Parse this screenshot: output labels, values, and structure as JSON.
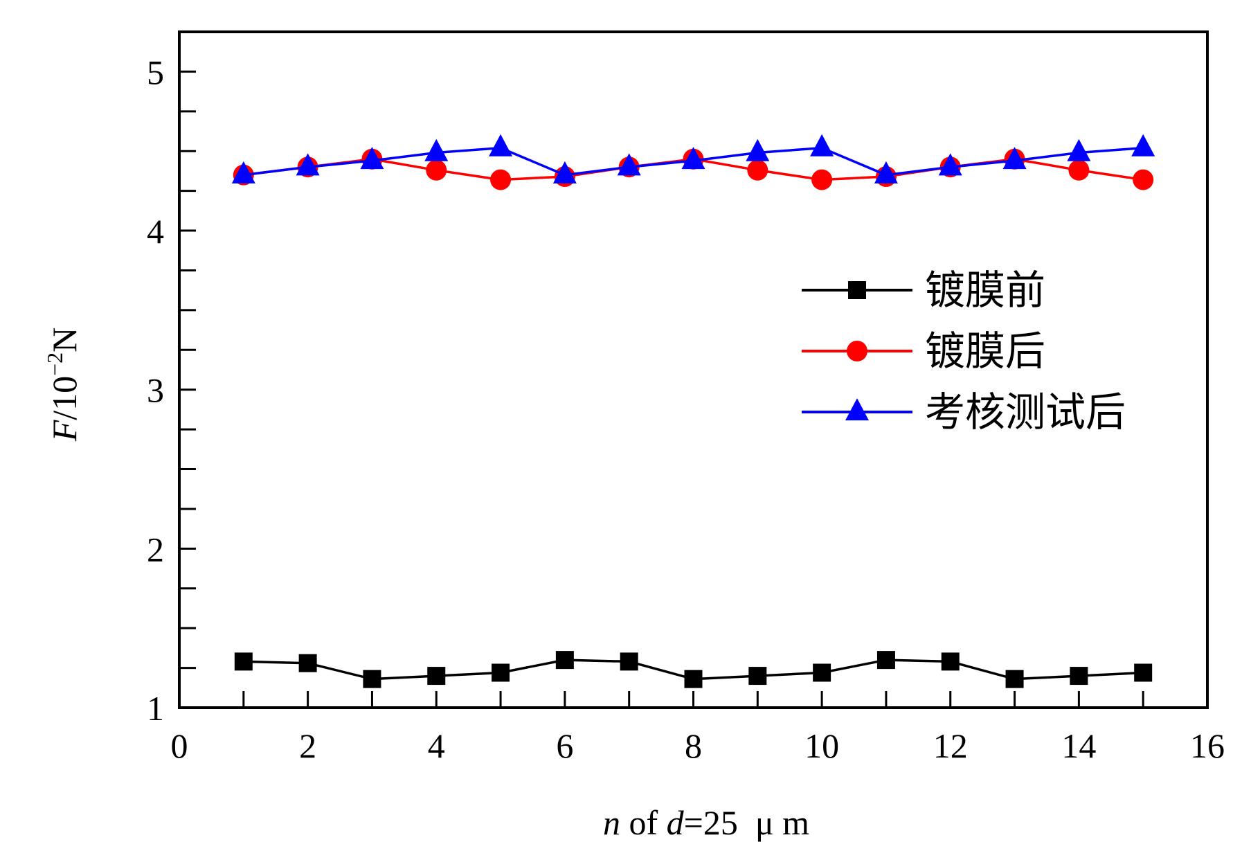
{
  "chart_data": {
    "type": "line",
    "title": "",
    "xlabel": {
      "italic": "n",
      "rest": " of ",
      "italic2": "d",
      "rest2": "=25  μ m"
    },
    "ylabel": {
      "italic": "F",
      "rest": "/10",
      "sup": "−2",
      "unit": "N"
    },
    "xlim": [
      0,
      16
    ],
    "ylim": [
      1,
      5.25
    ],
    "x_ticks": [
      0,
      2,
      4,
      6,
      8,
      10,
      12,
      14,
      16
    ],
    "y_ticks": [
      1,
      2,
      3,
      4,
      5
    ],
    "x": [
      1,
      2,
      3,
      4,
      5,
      6,
      7,
      8,
      9,
      10,
      11,
      12,
      13,
      14,
      15
    ],
    "legend_position": "right",
    "grid": false,
    "series": [
      {
        "name": "镀膜前",
        "color": "#000000",
        "marker": "square",
        "values": [
          1.29,
          1.28,
          1.18,
          1.2,
          1.22,
          1.3,
          1.29,
          1.18,
          1.2,
          1.22,
          1.3,
          1.29,
          1.18,
          1.2,
          1.22
        ]
      },
      {
        "name": "镀膜后",
        "color": "#ff0000",
        "marker": "circle",
        "values": [
          4.35,
          4.4,
          4.45,
          4.38,
          4.32,
          4.34,
          4.4,
          4.45,
          4.38,
          4.32,
          4.34,
          4.4,
          4.45,
          4.38,
          4.32
        ]
      },
      {
        "name": "考核测试后",
        "color": "#0000ff",
        "marker": "triangle",
        "values": [
          4.35,
          4.4,
          4.44,
          4.49,
          4.52,
          4.35,
          4.4,
          4.44,
          4.49,
          4.52,
          4.35,
          4.4,
          4.44,
          4.49,
          4.52
        ]
      }
    ]
  }
}
